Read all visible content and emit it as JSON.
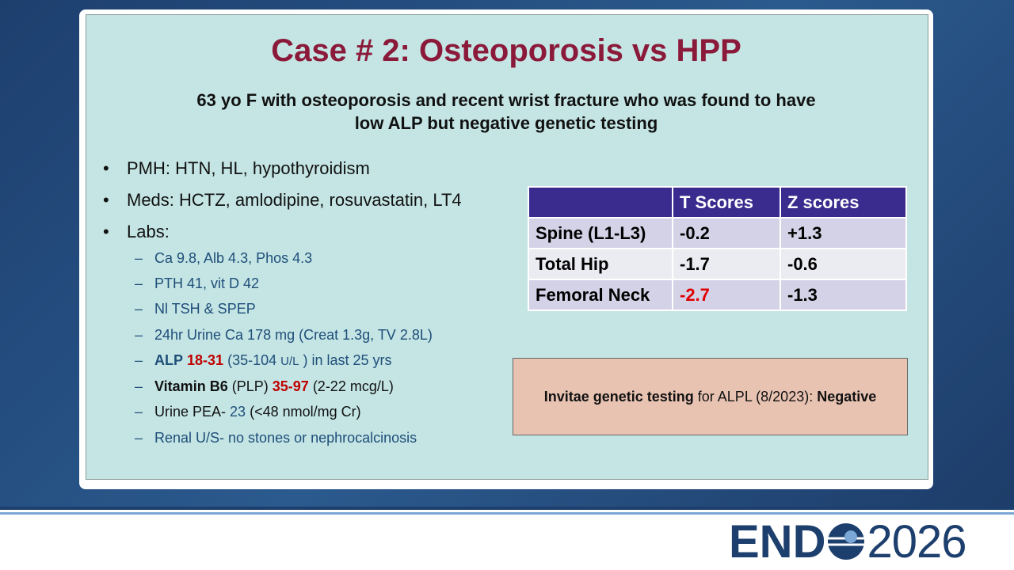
{
  "title": "Case # 2:  Osteoporosis vs HPP",
  "subtitle": [
    "63 yo F with osteoporosis and recent wrist fracture who was found to have",
    "low ALP but negative genetic testing"
  ],
  "bullets": [
    "PMH: HTN, HL, hypothyroidism",
    "Meds: HCTZ, amlodipine, rosuvastatin, LT4",
    "Labs:"
  ],
  "labs": [
    [
      "Ca 9.8, Alb 4.3, Phos 4.3"
    ],
    [
      "PTH 41, vit D 42"
    ],
    [
      "Nl TSH & SPEP"
    ],
    [
      "24hr Urine Ca 178 mg (Creat 1.3g, TV 2.8L)"
    ],
    [
      "ALP",
      "18-31",
      "(35-104",
      "U/L",
      ") in last 25 yrs"
    ],
    [
      "Vitamin B6",
      "(PLP)",
      "35-97",
      "(2-22 mcg/L)"
    ],
    [
      "Urine PEA-",
      "23",
      "(<48 nmol/mg Cr)"
    ],
    [
      "Renal U/S- no stones or nephrocalcinosis"
    ]
  ],
  "table": {
    "header": [
      "T Scores",
      "Z scores"
    ],
    "rows": [
      [
        "Spine (L1-L3)",
        "-0.2",
        "+1.3"
      ],
      [
        "Total Hip",
        "-1.7",
        "-0.6"
      ],
      [
        "Femoral Neck",
        "-2.7",
        "-1.3"
      ]
    ]
  },
  "genetic_box": [
    "Invitae genetic testing",
    "for ALPL (8/2023):",
    "Negative"
  ],
  "logo": {
    "left": "END",
    "right": "2026"
  }
}
